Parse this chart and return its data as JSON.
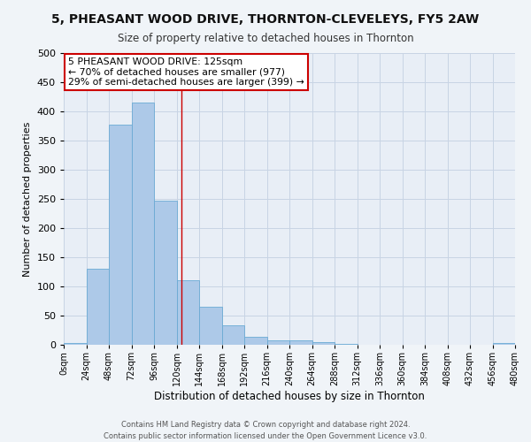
{
  "title": "5, PHEASANT WOOD DRIVE, THORNTON-CLEVELEYS, FY5 2AW",
  "subtitle": "Size of property relative to detached houses in Thornton",
  "xlabel": "Distribution of detached houses by size in Thornton",
  "ylabel": "Number of detached properties",
  "bin_edges": [
    0,
    24,
    48,
    72,
    96,
    120,
    144,
    168,
    192,
    216,
    240,
    264,
    288,
    312,
    336,
    360,
    384,
    408,
    432,
    456,
    480
  ],
  "bar_heights": [
    3,
    130,
    377,
    415,
    247,
    110,
    65,
    33,
    14,
    8,
    7,
    5,
    2,
    0,
    0,
    0,
    0,
    0,
    0,
    3
  ],
  "bar_color": "#adc9e8",
  "bar_edge_color": "#6aaad4",
  "reference_line_x": 125,
  "reference_line_color": "#cc0000",
  "ylim": [
    0,
    500
  ],
  "yticks": [
    0,
    50,
    100,
    150,
    200,
    250,
    300,
    350,
    400,
    450,
    500
  ],
  "xtick_labels": [
    "0sqm",
    "24sqm",
    "48sqm",
    "72sqm",
    "96sqm",
    "120sqm",
    "144sqm",
    "168sqm",
    "192sqm",
    "216sqm",
    "240sqm",
    "264sqm",
    "288sqm",
    "312sqm",
    "336sqm",
    "360sqm",
    "384sqm",
    "408sqm",
    "432sqm",
    "456sqm",
    "480sqm"
  ],
  "annotation_title": "5 PHEASANT WOOD DRIVE: 125sqm",
  "annotation_line1": "← 70% of detached houses are smaller (977)",
  "annotation_line2": "29% of semi-detached houses are larger (399) →",
  "annotation_box_color": "#ffffff",
  "annotation_box_edge_color": "#cc0000",
  "footer_line1": "Contains HM Land Registry data © Crown copyright and database right 2024.",
  "footer_line2": "Contains public sector information licensed under the Open Government Licence v3.0.",
  "grid_color": "#c8d4e4",
  "background_color": "#e8eef6",
  "fig_background_color": "#f0f4f8"
}
